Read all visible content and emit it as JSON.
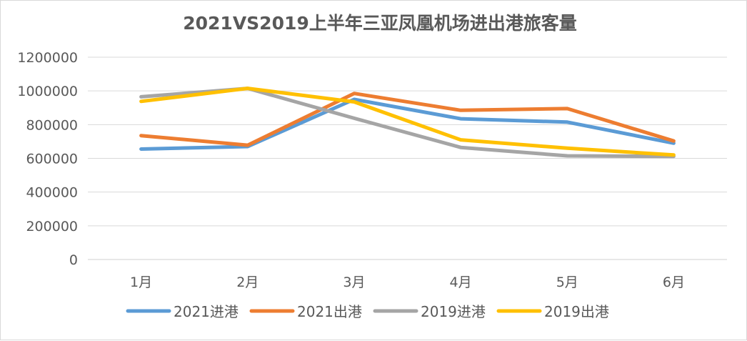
{
  "chart_data": {
    "type": "line",
    "title": "2021VS2019上半年三亚凤凰机场进出港旅客量",
    "categories": [
      "1月",
      "2月",
      "3月",
      "4月",
      "5月",
      "6月"
    ],
    "y_ticks": [
      "0",
      "200000",
      "400000",
      "600000",
      "800000",
      "1000000",
      "1200000"
    ],
    "ylim": [
      0,
      1200000
    ],
    "grid": true,
    "legend_position": "bottom",
    "xlabel": "",
    "ylabel": "",
    "series": [
      {
        "name": "2021进港",
        "color": "#5B9BD5",
        "values": [
          655000,
          670000,
          950000,
          835000,
          815000,
          690000
        ]
      },
      {
        "name": "2021出港",
        "color": "#ED7D31",
        "values": [
          735000,
          678000,
          985000,
          885000,
          895000,
          703000
        ]
      },
      {
        "name": "2019进港",
        "color": "#A5A5A5",
        "values": [
          965000,
          1015000,
          838000,
          665000,
          615000,
          612000
        ]
      },
      {
        "name": "2019出港",
        "color": "#FFC000",
        "values": [
          938000,
          1015000,
          935000,
          710000,
          660000,
          620000
        ]
      }
    ]
  }
}
